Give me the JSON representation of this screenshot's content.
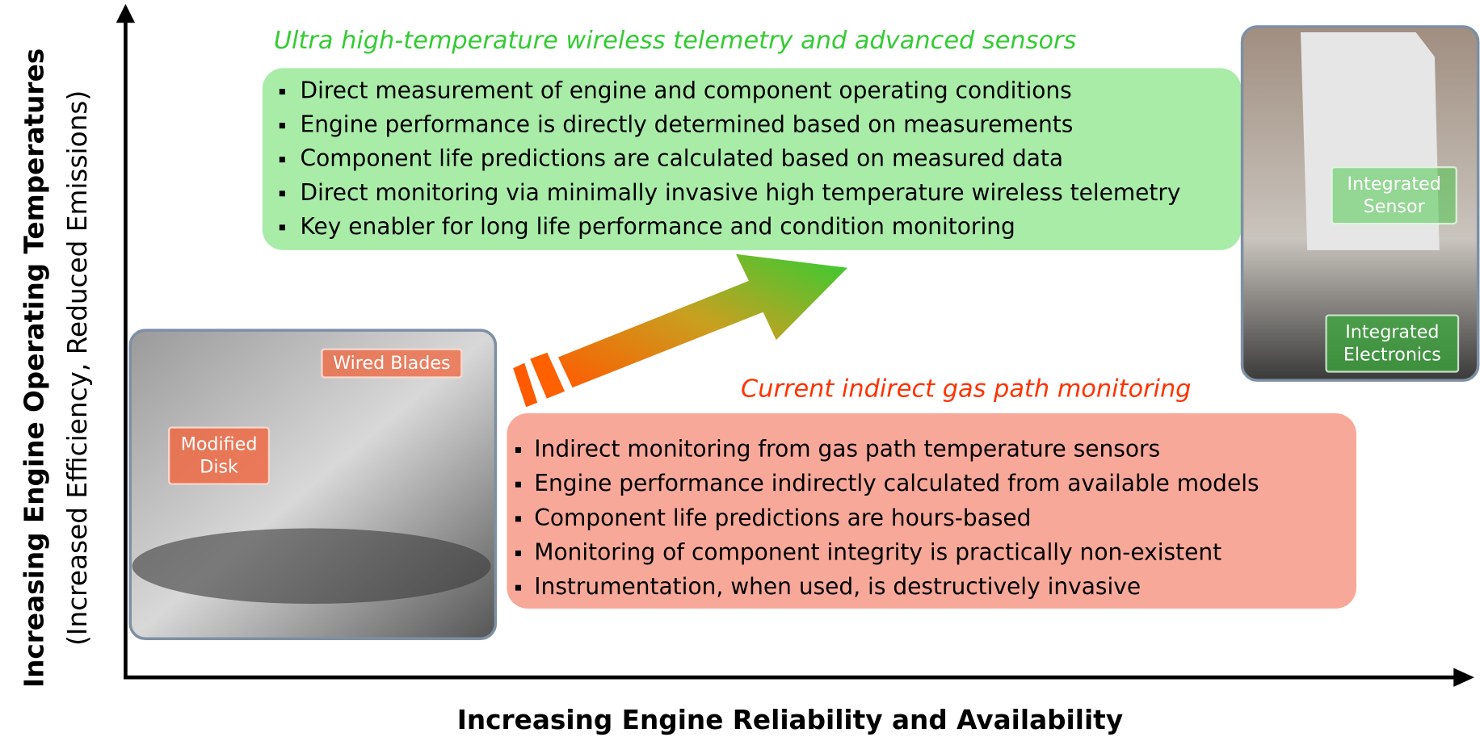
{
  "y_axis": {
    "title": "Increasing Engine Operating Temperatures",
    "subtitle": "(Increased Efficiency, Reduced Emissions)"
  },
  "x_axis": {
    "title": "Increasing Engine Reliability and Availability"
  },
  "future": {
    "heading": "Ultra high-temperature wireless telemetry and advanced sensors",
    "bullets": [
      "Direct measurement of engine and component operating conditions",
      "Engine performance is directly determined based on measurements",
      "Component life predictions are calculated based on measured data",
      "Direct monitoring via minimally invasive high temperature wireless telemetry",
      "Key enabler for long life performance and condition monitoring"
    ]
  },
  "current": {
    "heading": "Current indirect gas path monitoring",
    "bullets": [
      "Indirect monitoring from gas path temperature sensors",
      "Engine performance indirectly calculated from available models",
      "Component life predictions are hours-based",
      "Monitoring of component integrity is practically non-existent",
      "Instrumentation, when used, is destructively invasive"
    ]
  },
  "photo_labels": {
    "wired_blades": "Wired Blades",
    "modified_disk": "Modified Disk",
    "integrated_sensor": "Integrated Sensor",
    "integrated_electronics": "Integrated Electronics"
  }
}
